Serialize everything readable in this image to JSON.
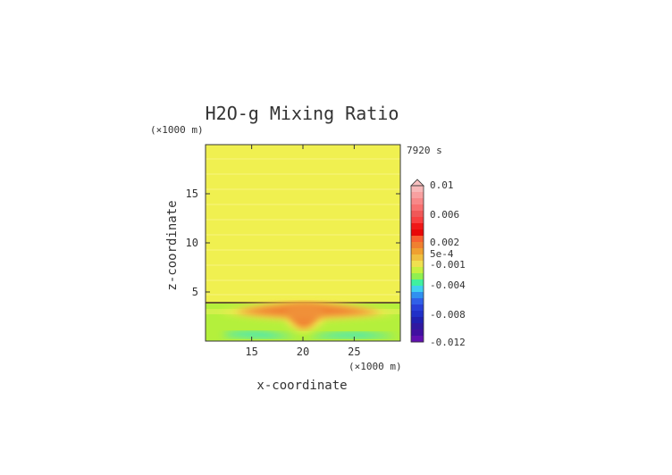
{
  "chart_data": {
    "type": "heatmap",
    "title": "H2O-g Mixing Ratio",
    "xlabel": "x-coordinate",
    "ylabel": "z-coordinate",
    "x_unit": "(×1000 m)",
    "y_unit": "(×1000 m)",
    "time_label": "7920 s",
    "xlim": [
      10.5,
      29.5
    ],
    "ylim": [
      0,
      20
    ],
    "xticks": [
      15,
      20,
      25
    ],
    "yticks": [
      5,
      10,
      15
    ],
    "colorbar": {
      "labels": [
        "0.01",
        "0.006",
        "0.002",
        "5e-4",
        "-0.001",
        "-0.004",
        "-0.008",
        "-0.012"
      ],
      "extend_max": true
    },
    "field_regions": [
      {
        "description": "upper troposphere",
        "z_range": [
          4.0,
          20.0
        ],
        "value": 0.0008
      },
      {
        "description": "boundary layer",
        "z_range": [
          0.0,
          4.0
        ],
        "value": -0.0005
      },
      {
        "description": "central positive anomaly",
        "x_center": 20,
        "z_center": 3.2,
        "value": 0.0025
      },
      {
        "description": "near-surface negative band",
        "z_center": 1.0,
        "value": -0.0025
      }
    ]
  }
}
